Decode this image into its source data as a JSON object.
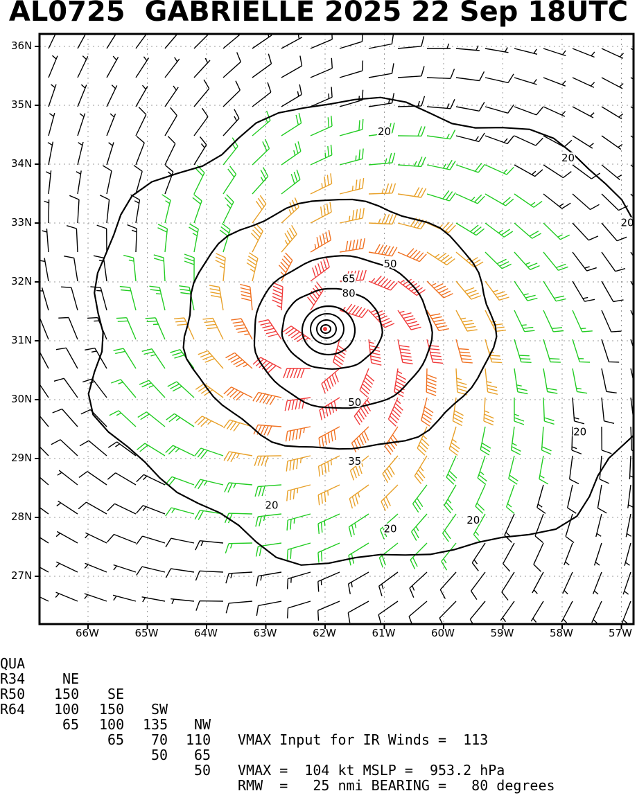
{
  "title": "AL0725  GABRIELLE 2025 22 Sep 18UTC",
  "map": {
    "lat_labels": [
      "36N",
      "35N",
      "34N",
      "33N",
      "32N",
      "31N",
      "30N",
      "29N",
      "28N",
      "27N"
    ],
    "lon_labels": [
      "66W",
      "65W",
      "64W",
      "63W",
      "62W",
      "61W",
      "60W",
      "59W",
      "58W",
      "57W"
    ],
    "storm_center": {
      "lon": -62.0,
      "lat": 31.2
    },
    "contour_labels": [
      {
        "text": "20",
        "lon": -61.0,
        "lat": 34.55
      },
      {
        "text": "20",
        "lon": -57.9,
        "lat": 34.1
      },
      {
        "text": "20",
        "lon": -56.9,
        "lat": 33.0
      },
      {
        "text": "50",
        "lon": -60.9,
        "lat": 32.3
      },
      {
        "text": "65",
        "lon": -61.6,
        "lat": 32.05
      },
      {
        "text": "80",
        "lon": -61.6,
        "lat": 31.8
      },
      {
        "text": "50",
        "lon": -61.5,
        "lat": 29.95
      },
      {
        "text": "35",
        "lon": -61.5,
        "lat": 28.95
      },
      {
        "text": "20",
        "lon": -57.7,
        "lat": 29.45
      },
      {
        "text": "20",
        "lon": -62.9,
        "lat": 28.2
      },
      {
        "text": "20",
        "lon": -59.5,
        "lat": 27.95
      },
      {
        "text": "20",
        "lon": -60.9,
        "lat": 27.8
      }
    ],
    "colors": {
      "calm": "#000000",
      "ts": "#22cc22",
      "strong": "#e8a028",
      "hurricane": "#f07020",
      "major": "#f03a3a",
      "contour": "#000000",
      "grid": "#9a9a9a"
    }
  },
  "table": {
    "header": {
      "qua": "QUA",
      "ne": "NE",
      "se": "SE",
      "sw": "SW",
      "nw": "NW",
      "info": "VMAX Input for IR Winds =  113"
    },
    "rows": [
      {
        "label": "R34",
        "ne": "150",
        "se": "150",
        "sw": "135",
        "nw": "110",
        "info": ""
      },
      {
        "label": "R50",
        "ne": "100",
        "se": "100",
        "sw": "70",
        "nw": "65",
        "info": "VMAX =  104 kt MSLP =  953.2 hPa"
      },
      {
        "label": "R64",
        "ne": "65",
        "se": "65",
        "sw": "50",
        "nw": "50",
        "info": "RMW  =   25 nmi BEARING =   80 degrees"
      }
    ]
  }
}
